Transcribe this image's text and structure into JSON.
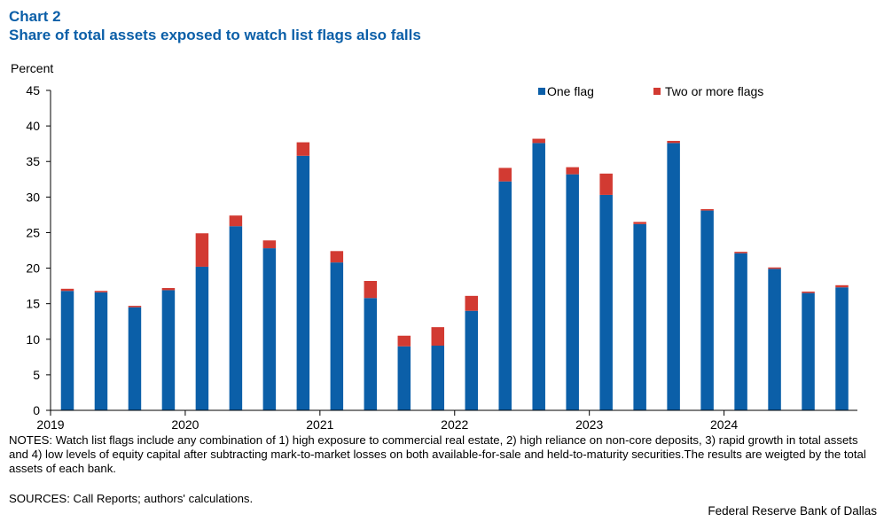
{
  "header": {
    "chart_label": "Chart 2",
    "title": "Share of total assets exposed to watch list flags also falls"
  },
  "chart_data": {
    "type": "bar",
    "stacked": true,
    "ylabel": "Percent",
    "ylim": [
      0,
      45
    ],
    "yticks": [
      0,
      5,
      10,
      15,
      20,
      25,
      30,
      35,
      40,
      45
    ],
    "xlim": [
      2019,
      2024.99
    ],
    "xticks": [
      2019,
      2020,
      2021,
      2022,
      2023,
      2024
    ],
    "x": [
      2019.0,
      2019.25,
      2019.5,
      2019.75,
      2020.0,
      2020.25,
      2020.5,
      2020.75,
      2021.0,
      2021.25,
      2021.5,
      2021.75,
      2022.0,
      2022.25,
      2022.5,
      2022.75,
      2023.0,
      2023.25,
      2023.5,
      2023.75,
      2024.0,
      2024.25,
      2024.5,
      2024.75
    ],
    "categories": [
      "2019Q1",
      "2019Q2",
      "2019Q3",
      "2019Q4",
      "2020Q1",
      "2020Q2",
      "2020Q3",
      "2020Q4",
      "2021Q1",
      "2021Q2",
      "2021Q3",
      "2021Q4",
      "2022Q1",
      "2022Q2",
      "2022Q3",
      "2022Q4",
      "2023Q1",
      "2023Q2",
      "2023Q3",
      "2023Q4",
      "2024Q1",
      "2024Q2",
      "2024Q3",
      "2024Q4"
    ],
    "series": [
      {
        "name": "One flag",
        "color": "#0b5fa8",
        "values": [
          16.8,
          16.6,
          14.5,
          16.9,
          20.2,
          25.9,
          22.8,
          35.8,
          20.8,
          15.8,
          9.0,
          9.1,
          14.0,
          32.2,
          37.6,
          33.2,
          30.3,
          26.2,
          37.6,
          28.1,
          22.1,
          19.9,
          16.5,
          17.3
        ]
      },
      {
        "name": "Two or more flags",
        "color": "#d23a32",
        "values": [
          0.3,
          0.2,
          0.2,
          0.3,
          4.7,
          1.5,
          1.1,
          1.9,
          1.6,
          2.4,
          1.5,
          2.6,
          2.1,
          1.9,
          0.6,
          1.0,
          3.0,
          0.3,
          0.3,
          0.2,
          0.2,
          0.2,
          0.2,
          0.3
        ]
      }
    ],
    "legend_position": "top-right"
  },
  "footer": {
    "notes": "NOTES: Watch list flags include any combination of 1) high exposure to commercial real estate, 2) high reliance on non-core deposits, 3) rapid growth in total assets and 4) low levels of equity capital after subtracting mark-to-market losses on both available-for-sale and held-to-maturity securities.The results are weigted by the total assets of each bank.",
    "sources": "SOURCES: Call Reports; authors' calculations.",
    "credit": "Federal Reserve Bank of Dallas"
  }
}
